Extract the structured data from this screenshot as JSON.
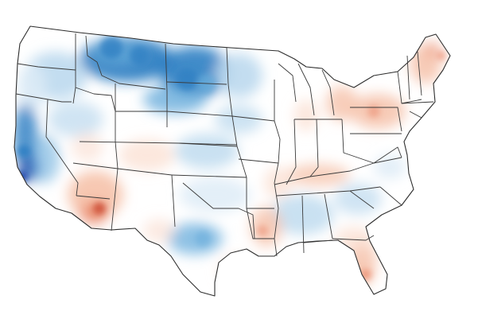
{
  "map": {
    "region": "contiguous-united-states",
    "style": "precipitation-anomaly-choropleth",
    "palette": {
      "strong_blue": "#0b3fa8",
      "blue": "#2f7fc3",
      "medium_blue": "#6aaedc",
      "light_blue": "#bcd9ee",
      "very_light_blue": "#dcebf6",
      "neutral": "#ffffff",
      "very_light_red": "#fbe1d5",
      "light_red": "#f6c2aa",
      "red": "#e98466",
      "dark_red": "#c7402a"
    },
    "state_borders": true
  }
}
